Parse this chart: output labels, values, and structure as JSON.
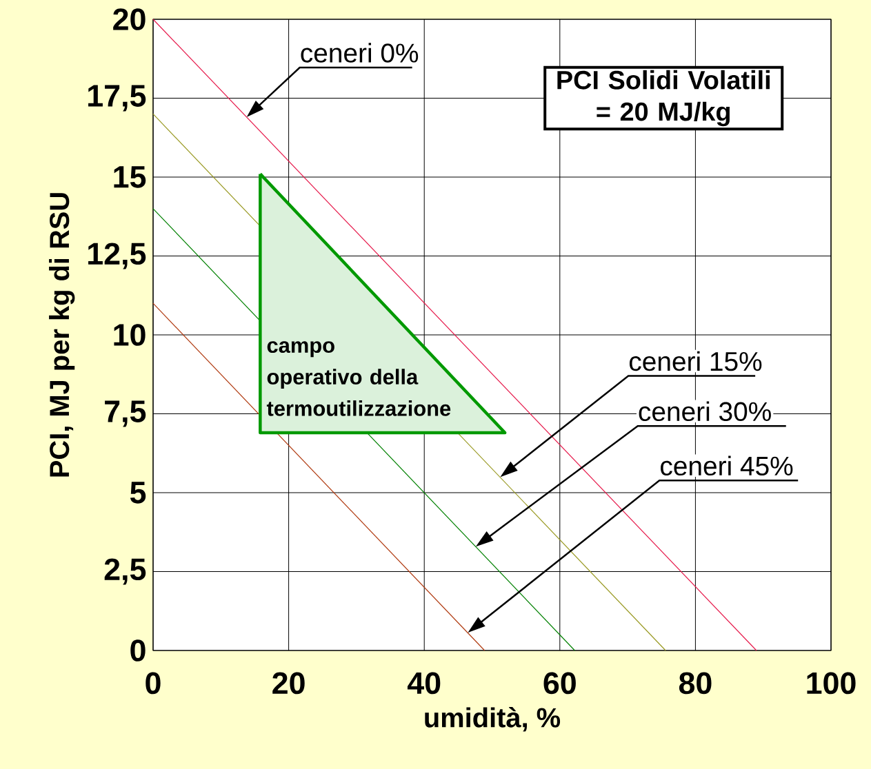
{
  "chart_data": {
    "type": "line",
    "xlabel": "umidità, %",
    "ylabel": "PCI, MJ per kg di RSU",
    "xlim": [
      0,
      100
    ],
    "ylim": [
      0,
      20
    ],
    "xticks": [
      0,
      20,
      40,
      60,
      80,
      100
    ],
    "yticks": [
      0,
      {
        "value": 2.5,
        "label": "2,5"
      },
      5,
      {
        "value": 7.5,
        "label": "7,5"
      },
      10,
      {
        "value": 12.5,
        "label": "12,5"
      },
      15,
      {
        "value": 17.5,
        "label": "17,5"
      },
      20
    ],
    "grid": true,
    "marker": "none",
    "series": [
      {
        "name": "ceneri 0%",
        "color": "#e6194b",
        "x": [
          0,
          89.0
        ],
        "values": [
          20,
          0
        ]
      },
      {
        "name": "ceneri 15%",
        "color": "#999922",
        "x": [
          0,
          75.6
        ],
        "values": [
          17,
          0
        ]
      },
      {
        "name": "ceneri 30%",
        "color": "#008000",
        "x": [
          0,
          62.2
        ],
        "values": [
          14,
          0
        ]
      },
      {
        "name": "ceneri 45%",
        "color": "#b03a10",
        "x": [
          0,
          48.9
        ],
        "values": [
          11,
          0
        ]
      },
      {
        "type": "area",
        "name": "campo operativo della termoutilizzazione",
        "color": "#009900",
        "x": [
          15.8,
          15.8,
          51.9,
          15.8
        ],
        "values": [
          15.1,
          6.9,
          6.9,
          15.1
        ]
      }
    ],
    "annotations": [
      "PCI Solidi Volatili = 20 MJ/kg"
    ]
  }
}
